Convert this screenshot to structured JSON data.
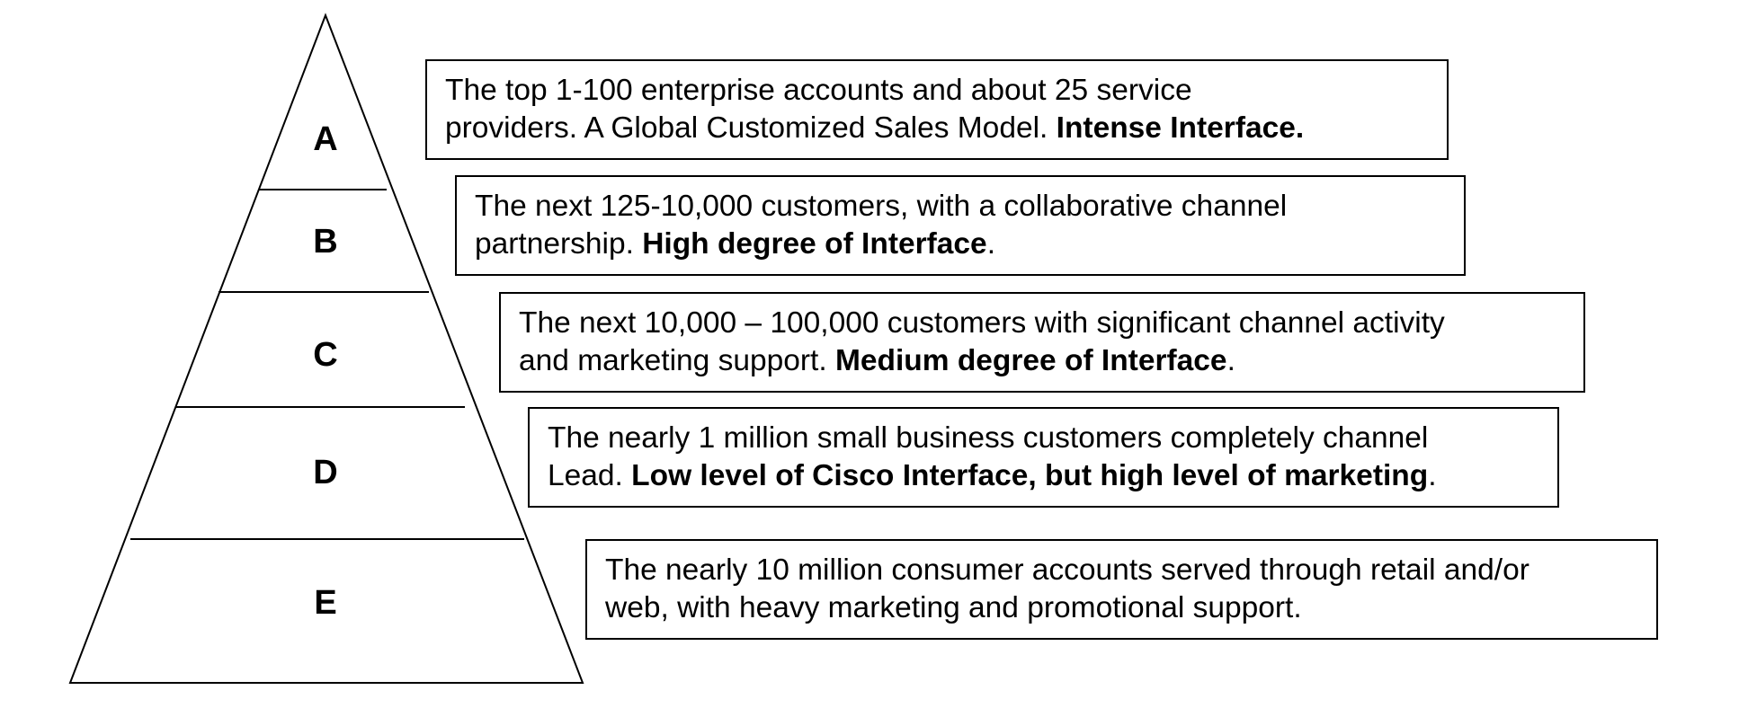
{
  "tiers": [
    {
      "letter": "A",
      "line1": "The top 1-100 enterprise accounts and about 25 service",
      "line2_plain": "providers.  A Global Customized Sales Model.  ",
      "line2_bold": "Intense Interface.",
      "line2_tail": ""
    },
    {
      "letter": "B",
      "line1": "The next 125-10,000 customers, with a collaborative channel",
      "line2_plain": "partnership.  ",
      "line2_bold": "High degree of Interface",
      "line2_tail": "."
    },
    {
      "letter": "C",
      "line1": "The next 10,000 – 100,000 customers with significant channel activity",
      "line2_plain": "and marketing support. ",
      "line2_bold": "Medium degree of Interface",
      "line2_tail": "."
    },
    {
      "letter": "D",
      "line1": "The nearly 1 million small business customers completely channel",
      "line2_plain": "Lead. ",
      "line2_bold": "Low level of Cisco Interface, but high level of marketing",
      "line2_tail": "."
    },
    {
      "letter": "E",
      "line1": "The nearly 10 million consumer accounts served through retail and/or",
      "line2_plain": "web, with heavy marketing and promotional support.",
      "line2_bold": "",
      "line2_tail": ""
    }
  ]
}
